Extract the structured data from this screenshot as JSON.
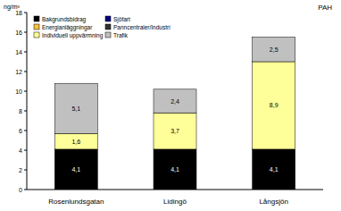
{
  "chart_data": {
    "type": "bar",
    "stacked": true,
    "title": "PAH",
    "y_label": "ng/m³",
    "categories": [
      "Rosenlundsgatan",
      "Lidingö",
      "Långsjön"
    ],
    "series": [
      {
        "name": "Bakgrundsbidrag",
        "color": "#000000",
        "values": [
          4.1,
          4.1,
          4.1
        ],
        "value_labels": [
          "4,1",
          "4,1",
          "4,1"
        ]
      },
      {
        "name": "Sjöfart",
        "color": "#000080",
        "values": [
          0,
          0,
          0
        ]
      },
      {
        "name": "Energianläggningar",
        "color": "#f6c343",
        "values": [
          0,
          0,
          0
        ]
      },
      {
        "name": "Panncentraler/Industri",
        "color": "#333333",
        "values": [
          0,
          0,
          0
        ]
      },
      {
        "name": "Individuell uppvärmning",
        "color": "#ffff99",
        "values": [
          1.6,
          3.7,
          8.9
        ],
        "value_labels": [
          "1,6",
          "3,7",
          "8,9"
        ]
      },
      {
        "name": "Trafik",
        "color": "#c0c0c0",
        "values": [
          5.1,
          2.4,
          2.5
        ],
        "value_labels": [
          "5,1",
          "2,4",
          "2,5"
        ]
      }
    ],
    "ylim": [
      0,
      18
    ],
    "yticks": [
      0,
      2,
      4,
      6,
      8,
      10,
      12,
      14,
      16,
      18
    ],
    "grid": false,
    "legend": "upper left",
    "data_labels": true
  }
}
